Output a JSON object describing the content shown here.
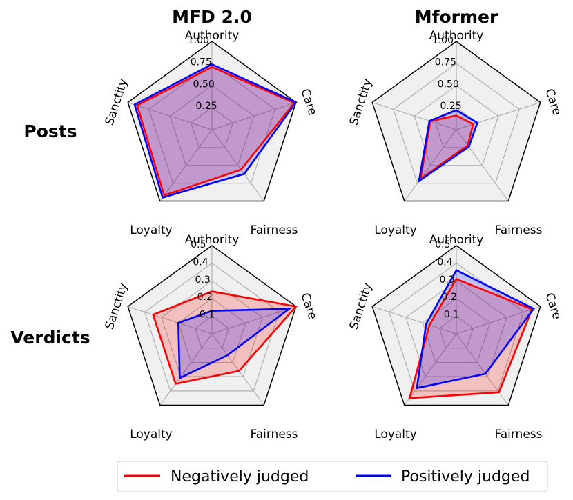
{
  "chart_data": [
    {
      "type": "radar",
      "title": "MFD 2.0",
      "row_label": "Posts",
      "axes": [
        "Authority",
        "Care",
        "Fairness",
        "Loyalty",
        "Sanctity"
      ],
      "rlim": [
        0,
        1.0
      ],
      "rticks": [
        "0.25",
        "0.50",
        "0.75",
        "1.00"
      ],
      "series": [
        {
          "name": "Negatively judged",
          "values": [
            0.71,
            0.98,
            0.56,
            0.92,
            0.89
          ]
        },
        {
          "name": "Positively judged",
          "values": [
            0.74,
            1.0,
            0.62,
            0.95,
            0.92
          ]
        }
      ]
    },
    {
      "type": "radar",
      "title": "Mformer",
      "row_label": "Posts",
      "axes": [
        "Authority",
        "Care",
        "Fairness",
        "Loyalty",
        "Sanctity"
      ],
      "rlim": [
        0,
        1.0
      ],
      "rticks": [
        "0.25",
        "0.50",
        "0.75",
        "1.00"
      ],
      "series": [
        {
          "name": "Negatively judged",
          "values": [
            0.16,
            0.2,
            0.22,
            0.69,
            0.31
          ]
        },
        {
          "name": "Positively judged",
          "values": [
            0.22,
            0.25,
            0.24,
            0.72,
            0.32
          ]
        }
      ]
    },
    {
      "type": "radar",
      "title": "",
      "row_label": "Verdicts",
      "axes": [
        "Authority",
        "Care",
        "Fairness",
        "Loyalty",
        "Sanctity"
      ],
      "rlim": [
        0,
        0.5
      ],
      "rticks": [
        "0.1",
        "0.2",
        "0.3",
        "0.4",
        "0.5"
      ],
      "series": [
        {
          "name": "Negatively judged",
          "values": [
            0.24,
            0.5,
            0.26,
            0.35,
            0.35
          ]
        },
        {
          "name": "Positively judged",
          "values": [
            0.13,
            0.46,
            0.15,
            0.31,
            0.2
          ]
        }
      ]
    },
    {
      "type": "radar",
      "title": "",
      "row_label": "Verdicts",
      "axes": [
        "Authority",
        "Care",
        "Fairness",
        "Loyalty",
        "Sanctity"
      ],
      "rlim": [
        0,
        0.5
      ],
      "rticks": [
        "0.1",
        "0.2",
        "0.3",
        "0.4",
        "0.5"
      ],
      "series": [
        {
          "name": "Negatively judged",
          "values": [
            0.31,
            0.45,
            0.41,
            0.45,
            0.16
          ]
        },
        {
          "name": "Positively judged",
          "values": [
            0.36,
            0.46,
            0.28,
            0.38,
            0.18
          ]
        }
      ]
    }
  ],
  "legend": {
    "items": [
      {
        "label": "Negatively judged",
        "color": "#ff0000"
      },
      {
        "label": "Positively judged",
        "color": "#0000ff"
      }
    ]
  },
  "colors": {
    "negative_line": "#ff0000",
    "negative_fill": "#ff0000",
    "positive_line": "#0000ff",
    "positive_fill": "#0000ff",
    "grid": "#b0b0b0",
    "background": "#f0f0f0"
  }
}
